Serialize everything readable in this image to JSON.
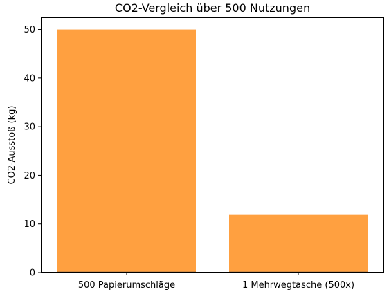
{
  "chart_data": {
    "type": "bar",
    "title": "CO2-Vergleich über 500 Nutzungen",
    "xlabel": "",
    "ylabel": "CO2-Ausstoß (kg)",
    "categories": [
      "500 Papierumschläge",
      "1 Mehrwegtasche (500x)"
    ],
    "values": [
      50,
      12
    ],
    "ylim": [
      0,
      52.5
    ],
    "yticks": [
      0,
      10,
      20,
      30,
      40,
      50
    ],
    "grid": false,
    "colors": {
      "bar": "#ffa040",
      "baseline": "#555555",
      "axis": "#000000"
    }
  }
}
